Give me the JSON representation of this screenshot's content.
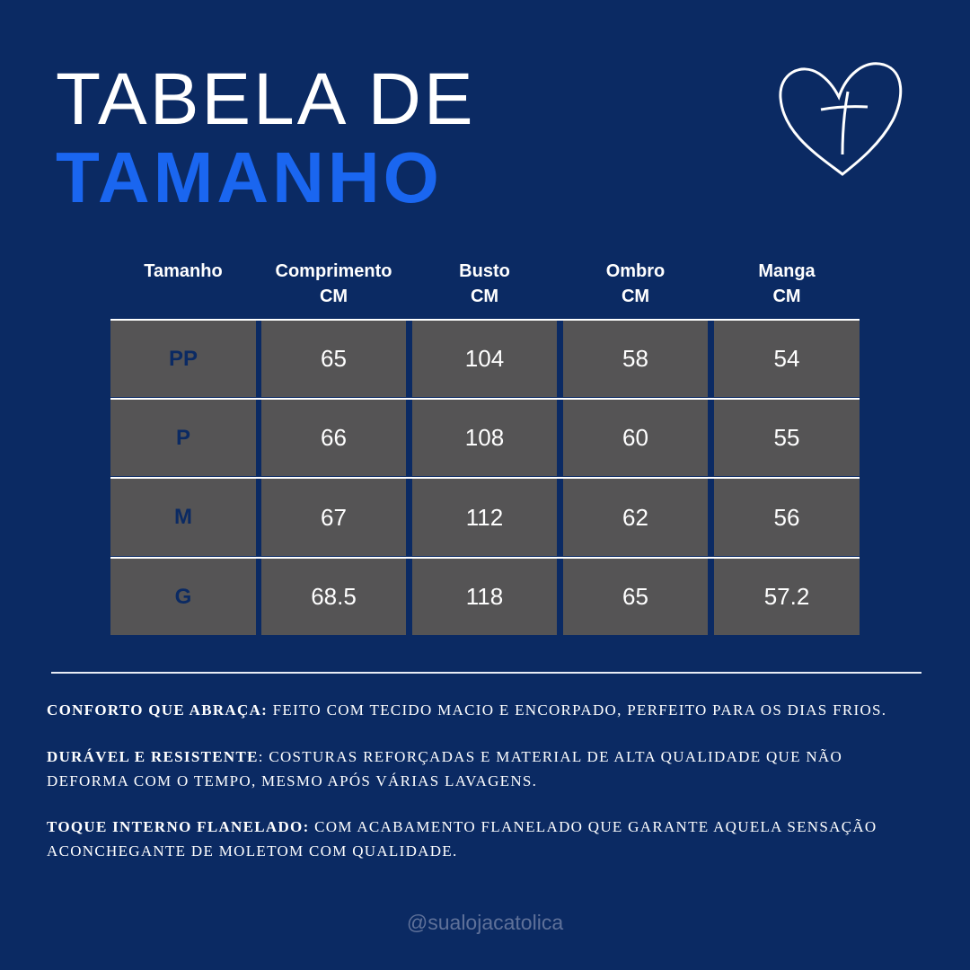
{
  "title_line1": "TABELA DE",
  "title_line2": "TAMANHO",
  "icon": "heart-cross-icon",
  "colors": {
    "background": "#0b2a63",
    "accent": "#1a66f0",
    "cell": "#555455"
  },
  "table": {
    "headers": [
      [
        "Tamanho",
        ""
      ],
      [
        "Comprimento",
        "CM"
      ],
      [
        "Busto",
        "CM"
      ],
      [
        "Ombro",
        "CM"
      ],
      [
        "Manga",
        "CM"
      ]
    ],
    "rows": [
      [
        "PP",
        "65",
        "104",
        "58",
        "54"
      ],
      [
        "P",
        "66",
        "108",
        "60",
        "55"
      ],
      [
        "M",
        "67",
        "112",
        "62",
        "56"
      ],
      [
        "G",
        "68.5",
        "118",
        "65",
        "57.2"
      ]
    ]
  },
  "features": [
    {
      "title": "Conforto que abraça:",
      "text": " feito com tecido macio e encorpado, perfeito para os dias frios."
    },
    {
      "title": "Durável e resistente",
      "text": ": costuras reforçadas e material de alta qualidade que não deforma com o tempo, mesmo após várias lavagens."
    },
    {
      "title": "Toque interno flanelado:",
      "text": " com acabamento flanelado que garante aquela sensação aconchegante de moletom com qualidade."
    }
  ],
  "handle": "@sualojacatolica"
}
